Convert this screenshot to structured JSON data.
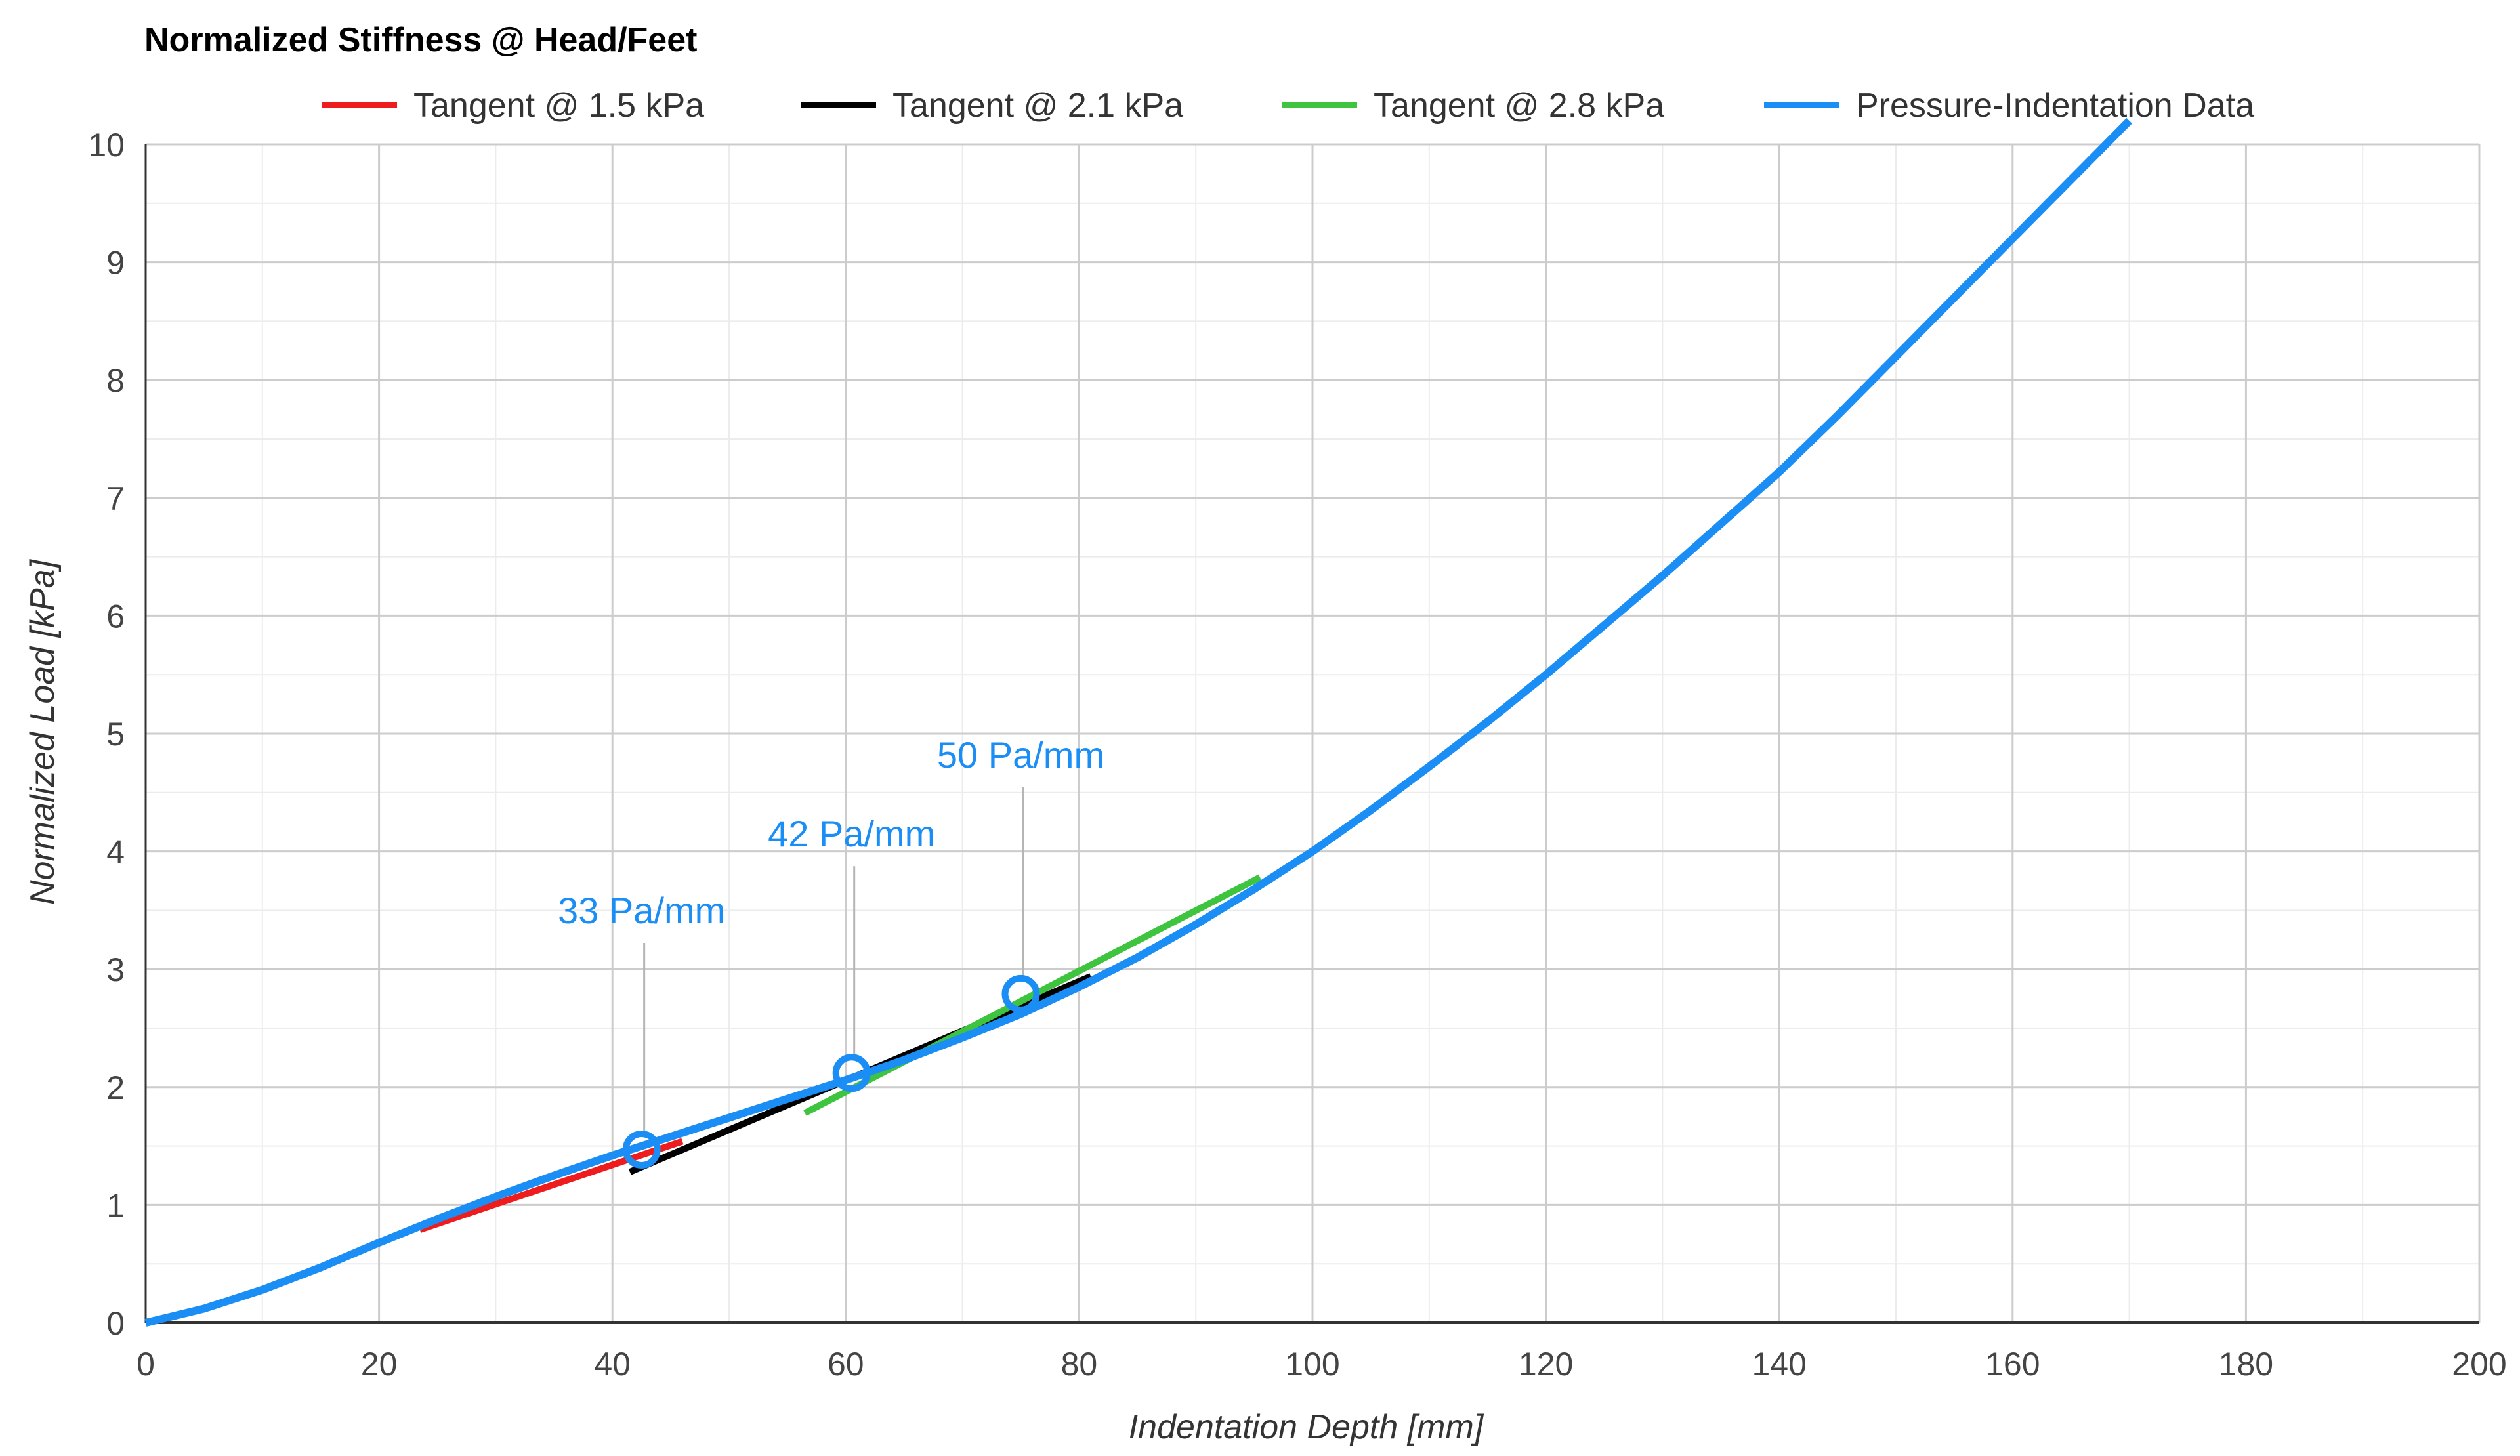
{
  "chart_data": {
    "type": "line",
    "title": "Normalized Stiffness @ Head/Feet",
    "xlabel": "Indentation Depth [mm]",
    "ylabel": "Normalized Load [kPa]",
    "xlim": [
      0,
      200
    ],
    "ylim": [
      0,
      10
    ],
    "xticks": [
      0,
      20,
      40,
      60,
      80,
      100,
      120,
      140,
      160,
      180,
      200
    ],
    "yticks": [
      0,
      1,
      2,
      3,
      4,
      5,
      6,
      7,
      8,
      9,
      10
    ],
    "grid": true,
    "legend_position": "top",
    "legend": [
      {
        "label": "Tangent @ 1.5 kPa",
        "color": "#ee1c1c"
      },
      {
        "label": "Tangent @ 2.1 kPa",
        "color": "#000000"
      },
      {
        "label": "Tangent @ 2.8 kPa",
        "color": "#3ec43e"
      },
      {
        "label": "Pressure-Indentation Data",
        "color": "#1a8ef5"
      }
    ],
    "series": [
      {
        "name": "Pressure-Indentation Data",
        "color": "#1a8ef5",
        "x": [
          0,
          5,
          10,
          15,
          20,
          25,
          30,
          35,
          40,
          45,
          50,
          55,
          60,
          65,
          70,
          75,
          80,
          85,
          90,
          95,
          100,
          105,
          110,
          115,
          120,
          125,
          130,
          135,
          140,
          145,
          150,
          155,
          160,
          165,
          170
        ],
        "y": [
          0.0,
          0.12,
          0.28,
          0.47,
          0.68,
          0.88,
          1.07,
          1.25,
          1.42,
          1.58,
          1.74,
          1.9,
          2.06,
          2.23,
          2.42,
          2.62,
          2.85,
          3.1,
          3.38,
          3.68,
          4.0,
          4.35,
          4.72,
          5.1,
          5.5,
          5.92,
          6.34,
          6.78,
          7.22,
          7.7,
          8.2,
          8.7,
          9.2,
          9.7,
          10.2
        ]
      },
      {
        "name": "Tangent @ 1.5 kPa",
        "color": "#ee1c1c",
        "x": [
          23.5,
          46
        ],
        "y": [
          0.79,
          1.54
        ]
      },
      {
        "name": "Tangent @ 2.1 kPa",
        "color": "#000000",
        "x": [
          41.5,
          81
        ],
        "y": [
          1.28,
          2.94
        ]
      },
      {
        "name": "Tangent @ 2.8 kPa",
        "color": "#3ec43e",
        "x": [
          56.5,
          95.5
        ],
        "y": [
          1.78,
          3.78
        ]
      }
    ],
    "annotations": [
      {
        "text": "33 Pa/mm",
        "x": 42.5,
        "y": 1.47
      },
      {
        "text": "42 Pa/mm",
        "x": 60.5,
        "y": 2.12
      },
      {
        "text": "50 Pa/mm",
        "x": 75,
        "y": 2.79
      }
    ],
    "annotation_color": "#1a8ef5"
  }
}
